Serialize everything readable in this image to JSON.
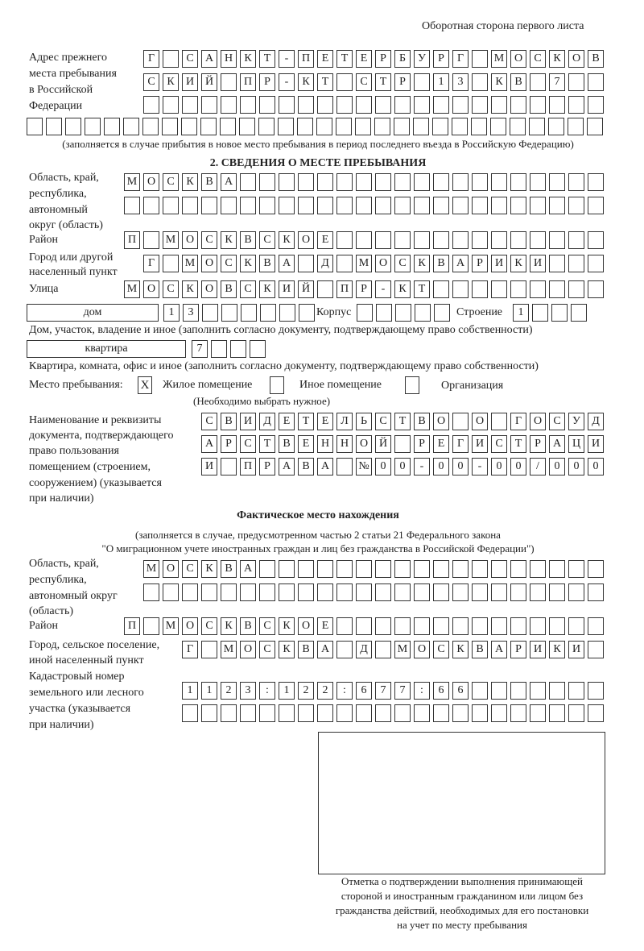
{
  "header": "Оборотная сторона первого листа",
  "prev_address": {
    "label": [
      "Адрес прежнего",
      "места пребывания",
      "в Российской",
      "Федерации"
    ],
    "rows": [
      [
        "Г",
        "",
        "С",
        "А",
        "Н",
        "К",
        "Т",
        "-",
        "П",
        "Е",
        "Т",
        "Е",
        "Р",
        "Б",
        "У",
        "Р",
        "Г",
        "",
        "М",
        "О",
        "С",
        "К",
        "О",
        "В"
      ],
      [
        "С",
        "К",
        "И",
        "Й",
        "",
        "П",
        "Р",
        "-",
        "К",
        "Т",
        "",
        "С",
        "Т",
        "Р",
        "",
        "1",
        "3",
        "",
        "К",
        "В",
        "",
        "7",
        "",
        ""
      ],
      [
        "",
        "",
        "",
        "",
        "",
        "",
        "",
        "",
        "",
        "",
        "",
        "",
        "",
        "",
        "",
        "",
        "",
        "",
        "",
        "",
        "",
        "",
        "",
        ""
      ],
      [
        "",
        "",
        "",
        "",
        "",
        "",
        "",
        "",
        "",
        "",
        "",
        "",
        "",
        "",
        "",
        "",
        "",
        "",
        "",
        "",
        "",
        "",
        "",
        "",
        "",
        "",
        "",
        "",
        "",
        ""
      ]
    ],
    "note": "(заполняется в случае прибытия в новое место пребывания в период последнего въезда в Российскую Федерацию)"
  },
  "section2": {
    "title": "2. СВЕДЕНИЯ О МЕСТЕ ПРЕБЫВАНИЯ",
    "region_label": [
      "Область, край,",
      "республика,",
      "автономный",
      "округ (область)"
    ],
    "region_rows": [
      [
        "М",
        "О",
        "С",
        "К",
        "В",
        "А",
        "",
        "",
        "",
        "",
        "",
        "",
        "",
        "",
        "",
        "",
        "",
        "",
        "",
        "",
        "",
        "",
        "",
        "",
        ""
      ],
      [
        "",
        "",
        "",
        "",
        "",
        "",
        "",
        "",
        "",
        "",
        "",
        "",
        "",
        "",
        "",
        "",
        "",
        "",
        "",
        "",
        "",
        "",
        "",
        "",
        ""
      ]
    ],
    "district_label": "Район",
    "district": [
      "П",
      "",
      "М",
      "О",
      "С",
      "К",
      "В",
      "С",
      "К",
      "О",
      "Е",
      "",
      "",
      "",
      "",
      "",
      "",
      "",
      "",
      "",
      "",
      "",
      "",
      "",
      ""
    ],
    "city_label": [
      "Город или другой",
      "населенный пункт"
    ],
    "city": [
      "Г",
      "",
      "М",
      "О",
      "С",
      "К",
      "В",
      "А",
      "",
      "Д",
      "",
      "М",
      "О",
      "С",
      "К",
      "В",
      "А",
      "Р",
      "И",
      "К",
      "И",
      "",
      "",
      ""
    ],
    "street_label": "Улица",
    "street": [
      "М",
      "О",
      "С",
      "К",
      "О",
      "В",
      "С",
      "К",
      "И",
      "Й",
      "",
      "П",
      "Р",
      "-",
      "К",
      "Т",
      "",
      "",
      "",
      "",
      "",
      "",
      "",
      "",
      ""
    ],
    "house_type": "дом",
    "house": [
      "1",
      "3",
      "",
      "",
      "",
      "",
      "",
      ""
    ],
    "korpus_label": "Корпус",
    "korpus": [
      "",
      "",
      "",
      "",
      ""
    ],
    "building_label": "Строение",
    "building": [
      "1",
      "",
      "",
      ""
    ],
    "house_note": "Дом, участок, владение и иное (заполнить согласно документу, подтверждающему право собственности)",
    "apt_type": "квартира",
    "apt": [
      "7",
      "",
      "",
      ""
    ],
    "apt_note": "Квартира, комната, офис и иное (заполнить согласно документу, подтверждающему право собственности)",
    "stay_label": "Место пребывания:",
    "options": [
      {
        "label": "Жилое помещение",
        "mark": "X"
      },
      {
        "label": "Иное помещение",
        "mark": ""
      },
      {
        "label": "Организация",
        "mark": ""
      }
    ],
    "stay_note": "(Необходимо выбрать нужное)",
    "doc_label": [
      "Наименование и реквизиты",
      "документа, подтверждающего",
      "право пользования",
      "помещением (строением,",
      "сооружением) (указывается",
      "при наличии)"
    ],
    "doc_rows": [
      [
        "С",
        "В",
        "И",
        "Д",
        "Е",
        "Т",
        "Е",
        "Л",
        "Ь",
        "С",
        "Т",
        "В",
        "О",
        "",
        "О",
        "",
        "Г",
        "О",
        "С",
        "У",
        "Д"
      ],
      [
        "А",
        "Р",
        "С",
        "Т",
        "В",
        "Е",
        "Н",
        "Н",
        "О",
        "Й",
        "",
        "Р",
        "Е",
        "Г",
        "И",
        "С",
        "Т",
        "Р",
        "А",
        "Ц",
        "И"
      ],
      [
        "И",
        "",
        "П",
        "Р",
        "А",
        "В",
        "А",
        "",
        "№",
        "0",
        "0",
        "-",
        "0",
        "0",
        "-",
        "0",
        "0",
        "/",
        "0",
        "0",
        "0"
      ]
    ]
  },
  "actual": {
    "title": "Фактическое место нахождения",
    "note": [
      "(заполняется в случае, предусмотренном частью 2 статьи 21 Федерального закона",
      "\"О миграционном учете иностранных граждан и лиц без гражданства в Российской Федерации\")"
    ],
    "region_label": [
      "Область, край,",
      "республика,",
      "автономный округ",
      "(область)"
    ],
    "region_rows": [
      [
        "М",
        "О",
        "С",
        "К",
        "В",
        "А",
        "",
        "",
        "",
        "",
        "",
        "",
        "",
        "",
        "",
        "",
        "",
        "",
        "",
        "",
        "",
        "",
        "",
        ""
      ],
      [
        "",
        "",
        "",
        "",
        "",
        "",
        "",
        "",
        "",
        "",
        "",
        "",
        "",
        "",
        "",
        "",
        "",
        "",
        "",
        "",
        "",
        "",
        "",
        ""
      ]
    ],
    "district_label": "Район",
    "district": [
      "П",
      "",
      "М",
      "О",
      "С",
      "К",
      "В",
      "С",
      "К",
      "О",
      "Е",
      "",
      "",
      "",
      "",
      "",
      "",
      "",
      "",
      "",
      "",
      "",
      "",
      "",
      ""
    ],
    "city_label": [
      "Город, сельское поселение,",
      "иной населенный пункт"
    ],
    "city": [
      "Г",
      "",
      "М",
      "О",
      "С",
      "К",
      "В",
      "А",
      "",
      "Д",
      "",
      "М",
      "О",
      "С",
      "К",
      "В",
      "А",
      "Р",
      "И",
      "К",
      "И",
      ""
    ],
    "cadastre_label": [
      "Кадастровый номер",
      "земельного или лесного",
      "участка (указывается",
      "при наличии)"
    ],
    "cadastre_rows": [
      [
        "1",
        "1",
        "2",
        "3",
        ":",
        "1",
        "2",
        "2",
        ":",
        "6",
        "7",
        "7",
        ":",
        "6",
        "6",
        "",
        "",
        "",
        "",
        "",
        "",
        ""
      ],
      [
        "",
        "",
        "",
        "",
        "",
        "",
        "",
        "",
        "",
        "",
        "",
        "",
        "",
        "",
        "",
        "",
        "",
        "",
        "",
        "",
        "",
        ""
      ]
    ],
    "stamp_caption": [
      "Отметка о подтверждении выполнения принимающей",
      "стороной и иностранным гражданином или лицом без",
      "гражданства действий, необходимых для его постановки",
      "на учет по месту пребывания"
    ]
  }
}
